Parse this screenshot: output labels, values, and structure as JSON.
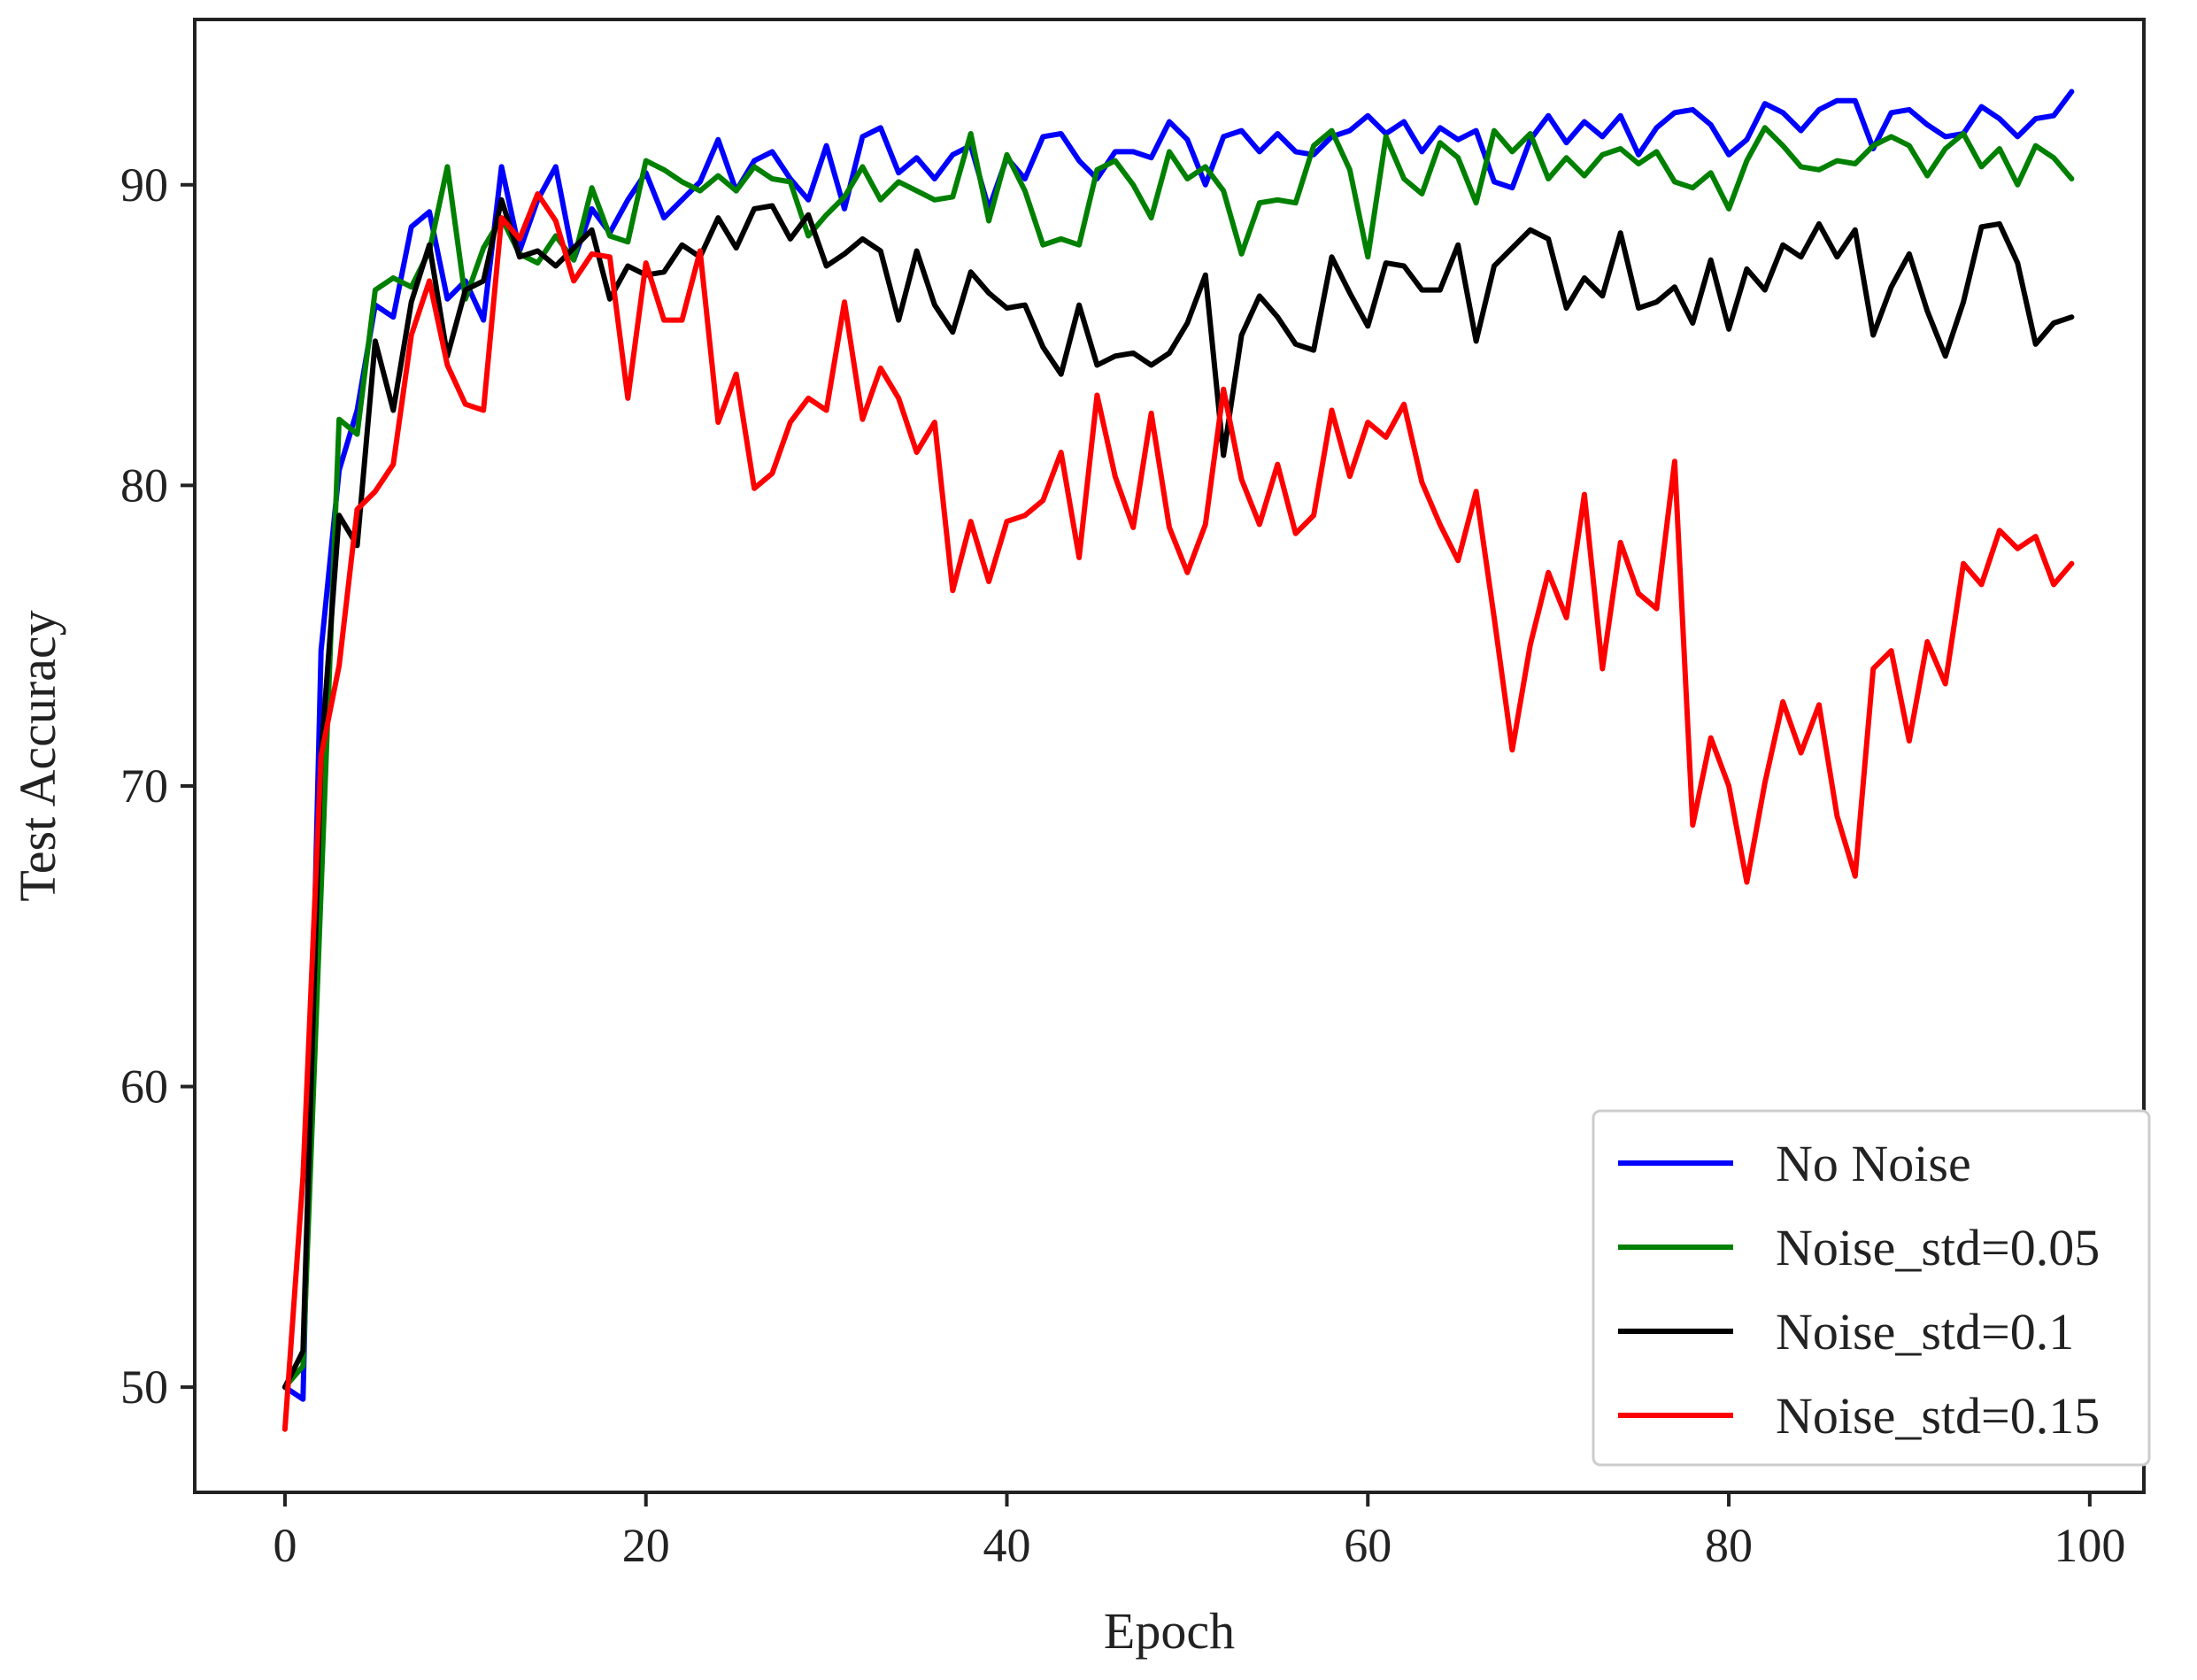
{
  "chart_data": {
    "type": "line",
    "title": "",
    "xlabel": "Epoch",
    "ylabel": "Test Accuracy",
    "xlim": [
      -5,
      103
    ],
    "ylim": [
      46.5,
      95.5
    ],
    "xticks": [
      0,
      20,
      40,
      60,
      80,
      100
    ],
    "yticks": [
      50,
      60,
      70,
      80,
      90
    ],
    "grid": false,
    "legend_position": "lower-right",
    "x": [
      0,
      1,
      2,
      3,
      4,
      5,
      6,
      7,
      8,
      9,
      10,
      11,
      12,
      13,
      14,
      15,
      16,
      17,
      18,
      19,
      20,
      21,
      22,
      23,
      24,
      25,
      26,
      27,
      28,
      29,
      30,
      31,
      32,
      33,
      34,
      35,
      36,
      37,
      38,
      39,
      40,
      41,
      42,
      43,
      44,
      45,
      46,
      47,
      48,
      49,
      50,
      51,
      52,
      53,
      54,
      55,
      56,
      57,
      58,
      59,
      60,
      61,
      62,
      63,
      64,
      65,
      66,
      67,
      68,
      69,
      70,
      71,
      72,
      73,
      74,
      75,
      76,
      77,
      78,
      79,
      80,
      81,
      82,
      83,
      84,
      85,
      86,
      87,
      88,
      89,
      90,
      91,
      92,
      93,
      94,
      95,
      96,
      97,
      98,
      99
    ],
    "series": [
      {
        "name": "No Noise",
        "color": "#0000ff",
        "values": [
          50.0,
          49.6,
          74.5,
          80.5,
          82.5,
          86.0,
          85.6,
          88.6,
          89.1,
          86.2,
          86.8,
          85.5,
          90.6,
          87.8,
          89.5,
          90.6,
          87.5,
          89.2,
          88.4,
          89.5,
          90.4,
          88.9,
          89.5,
          90.1,
          91.5,
          89.8,
          90.8,
          91.1,
          90.2,
          89.5,
          91.3,
          89.2,
          91.6,
          91.9,
          90.4,
          90.9,
          90.2,
          91.0,
          91.3,
          89.2,
          90.9,
          90.2,
          91.6,
          91.7,
          90.8,
          90.2,
          91.1,
          91.1,
          90.9,
          92.1,
          91.5,
          90.0,
          91.6,
          91.8,
          91.1,
          91.7,
          91.1,
          91.0,
          91.6,
          91.8,
          92.3,
          91.7,
          92.1,
          91.1,
          91.9,
          91.5,
          91.8,
          90.1,
          89.9,
          91.5,
          92.3,
          91.4,
          92.1,
          91.6,
          92.3,
          91.0,
          91.9,
          92.4,
          92.5,
          92.0,
          91.0,
          91.5,
          92.7,
          92.4,
          91.8,
          92.5,
          92.8,
          92.8,
          91.2,
          92.4,
          92.5,
          92.0,
          91.6,
          91.7,
          92.6,
          92.2,
          91.6,
          92.2,
          92.3,
          93.1
        ]
      },
      {
        "name": "Noise_std=0.05",
        "color": "#008000",
        "values": [
          50.0,
          50.7,
          66.5,
          82.2,
          81.7,
          86.5,
          86.9,
          86.6,
          87.8,
          90.6,
          86.2,
          87.9,
          88.9,
          87.7,
          87.4,
          88.3,
          87.5,
          89.9,
          88.3,
          88.1,
          90.8,
          90.5,
          90.1,
          89.8,
          90.3,
          89.8,
          90.6,
          90.2,
          90.1,
          88.3,
          89.0,
          89.6,
          90.6,
          89.5,
          90.1,
          89.8,
          89.5,
          89.6,
          91.7,
          88.8,
          91.0,
          89.8,
          88.0,
          88.2,
          88.0,
          90.5,
          90.8,
          90.0,
          88.9,
          91.1,
          90.2,
          90.6,
          89.8,
          87.7,
          89.4,
          89.5,
          89.4,
          91.3,
          91.8,
          90.5,
          87.6,
          91.6,
          90.2,
          89.7,
          91.4,
          90.9,
          89.4,
          91.8,
          91.1,
          91.7,
          90.2,
          90.9,
          90.3,
          91.0,
          91.2,
          90.7,
          91.1,
          90.1,
          89.9,
          90.4,
          89.2,
          90.8,
          91.9,
          91.3,
          90.6,
          90.5,
          90.8,
          90.7,
          91.3,
          91.6,
          91.3,
          90.3,
          91.2,
          91.7,
          90.6,
          91.2,
          90.0,
          91.3,
          90.9,
          90.2
        ]
      },
      {
        "name": "Noise_std=0.1",
        "color": "#000000",
        "values": [
          50.0,
          51.2,
          71.0,
          79.0,
          78.0,
          84.8,
          82.5,
          86.1,
          88.0,
          84.3,
          86.5,
          86.8,
          89.5,
          87.6,
          87.8,
          87.3,
          87.9,
          88.5,
          86.2,
          87.3,
          87.0,
          87.1,
          88.0,
          87.6,
          88.9,
          87.9,
          89.2,
          89.3,
          88.2,
          89.0,
          87.3,
          87.7,
          88.2,
          87.8,
          85.5,
          87.8,
          86.0,
          85.1,
          87.1,
          86.4,
          85.9,
          86.0,
          84.6,
          83.7,
          86.0,
          84.0,
          84.3,
          84.4,
          84.0,
          84.4,
          85.4,
          87.0,
          81.0,
          85.0,
          86.3,
          85.6,
          84.7,
          84.5,
          87.6,
          86.4,
          85.3,
          87.4,
          87.3,
          86.5,
          86.5,
          88.0,
          84.8,
          87.3,
          87.9,
          88.5,
          88.2,
          85.9,
          86.9,
          86.3,
          88.4,
          85.9,
          86.1,
          86.6,
          85.4,
          87.5,
          85.2,
          87.2,
          86.5,
          88.0,
          87.6,
          88.7,
          87.6,
          88.5,
          85.0,
          86.6,
          87.7,
          85.8,
          84.3,
          86.1,
          88.6,
          88.7,
          87.4,
          84.7,
          85.4,
          85.6
        ]
      },
      {
        "name": "Noise_std=0.15",
        "color": "#ff0000",
        "values": [
          48.6,
          57.0,
          71.0,
          74.0,
          79.2,
          79.8,
          80.7,
          85.0,
          86.8,
          84.0,
          82.7,
          82.5,
          88.9,
          88.2,
          89.7,
          88.8,
          86.8,
          87.7,
          87.6,
          82.9,
          87.4,
          85.5,
          85.5,
          87.8,
          82.1,
          83.7,
          79.9,
          80.4,
          82.1,
          82.9,
          82.5,
          86.1,
          82.2,
          83.9,
          82.9,
          81.1,
          82.1,
          76.5,
          78.8,
          76.8,
          78.8,
          79.0,
          79.5,
          81.1,
          77.6,
          83.0,
          80.3,
          78.6,
          82.4,
          78.6,
          77.1,
          78.7,
          83.2,
          80.2,
          78.7,
          80.7,
          78.4,
          79.0,
          82.5,
          80.3,
          82.1,
          81.6,
          82.7,
          80.1,
          78.7,
          77.5,
          79.8,
          75.6,
          71.2,
          74.7,
          77.1,
          75.6,
          79.7,
          73.9,
          78.1,
          76.4,
          75.9,
          80.8,
          68.7,
          71.6,
          70.0,
          66.8,
          70.1,
          72.8,
          71.1,
          72.7,
          69.0,
          67.0,
          73.9,
          74.5,
          71.5,
          74.8,
          73.4,
          77.4,
          76.7,
          78.5,
          77.9,
          78.3,
          76.7,
          77.4
        ]
      }
    ]
  }
}
